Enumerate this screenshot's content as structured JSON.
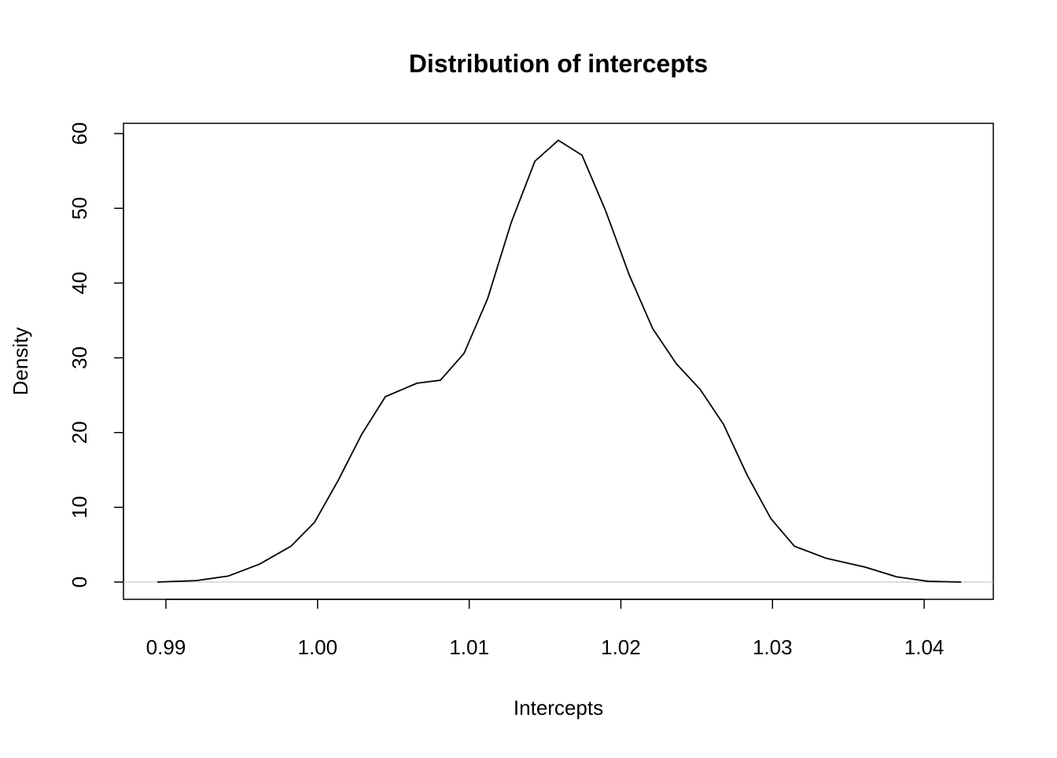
{
  "chart_data": {
    "type": "line",
    "title": "Distribution of intercepts",
    "x_label": "Intercepts",
    "y_label": "Density",
    "x": [
      0.98943,
      0.99202,
      0.9941,
      0.99617,
      0.99825,
      0.9998,
      1.00136,
      1.00292,
      1.00447,
      1.00655,
      1.0081,
      1.00966,
      1.01121,
      1.01277,
      1.01433,
      1.01588,
      1.01744,
      1.01899,
      1.02055,
      1.0221,
      1.02366,
      1.02522,
      1.02677,
      1.02833,
      1.02989,
      1.03144,
      1.03352,
      1.03611,
      1.03819,
      1.04026,
      1.04244
    ],
    "series": [
      {
        "color": "#000000",
        "values": [
          0,
          0.2,
          0.8,
          2.4,
          4.8,
          8,
          13.6,
          19.8,
          24.8,
          26.6,
          27,
          30.6,
          37.9,
          48.1,
          56.3,
          59.1,
          57.1,
          49.7,
          41.1,
          33.9,
          29.2,
          25.8,
          21.1,
          14.3,
          8.5,
          4.8,
          3.2,
          2,
          0.7,
          0.1,
          0
        ]
      }
    ],
    "xlim": [
      0.9872,
      1.04456
    ],
    "ylim": [
      -2.31,
      61.37
    ],
    "xticks": [
      0.99,
      {
        "value": 1,
        "label": "1.00"
      },
      1.01,
      1.02,
      1.03,
      1.04
    ],
    "yticks": [
      0,
      10,
      20,
      30,
      40,
      50,
      60
    ],
    "zero_line": true,
    "zero_line_color": "#bebebe"
  }
}
